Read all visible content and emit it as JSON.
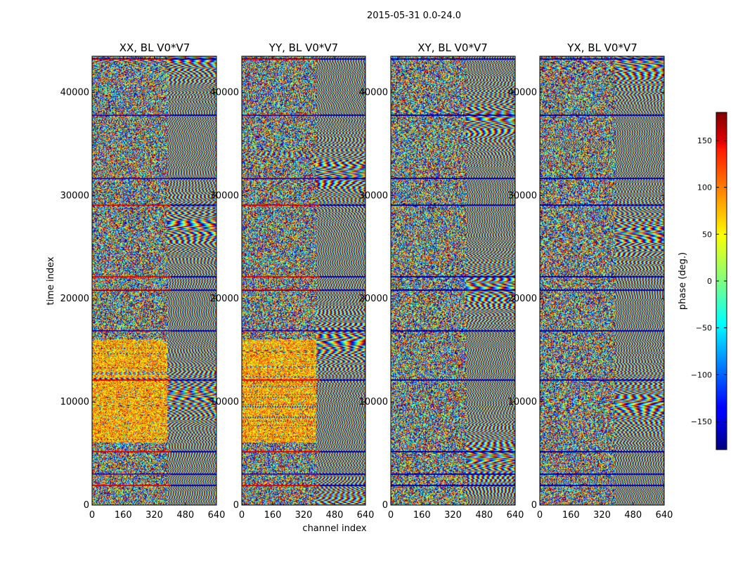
{
  "figure": {
    "suptitle": "2015-05-31 0.0-24.0"
  },
  "chart_data": [
    {
      "type": "heatmap",
      "title": "XX, BL V0*V7",
      "xlabel": "",
      "ylabel": "time index",
      "xlim": [
        0,
        640
      ],
      "ylim": [
        0,
        43500
      ],
      "xticks": [
        0,
        160,
        320,
        480,
        640
      ],
      "yticks": [
        0,
        10000,
        20000,
        30000,
        40000
      ],
      "value_range": [
        -180,
        180
      ],
      "colormap": "jet",
      "content": "noisy phase at low channels; striped fringe phase pattern above ~400"
    },
    {
      "type": "heatmap",
      "title": "YY, BL V0*V7",
      "xlabel": "channel index",
      "ylabel": "",
      "xlim": [
        0,
        640
      ],
      "ylim": [
        0,
        43500
      ],
      "xticks": [
        0,
        160,
        320,
        480,
        640
      ],
      "yticks": [
        0,
        10000,
        20000,
        30000,
        40000
      ],
      "value_range": [
        -180,
        180
      ],
      "colormap": "jet"
    },
    {
      "type": "heatmap",
      "title": "XY, BL V0*V7",
      "xlabel": "",
      "ylabel": "",
      "xlim": [
        0,
        640
      ],
      "ylim": [
        0,
        43500
      ],
      "xticks": [
        0,
        160,
        320,
        480,
        640
      ],
      "yticks": [
        0,
        10000,
        20000,
        30000,
        40000
      ],
      "value_range": [
        -180,
        180
      ],
      "colormap": "jet"
    },
    {
      "type": "heatmap",
      "title": "YX, BL V0*V7",
      "xlabel": "",
      "ylabel": "",
      "xlim": [
        0,
        640
      ],
      "ylim": [
        0,
        43500
      ],
      "xticks": [
        0,
        160,
        320,
        480,
        640
      ],
      "yticks": [
        0,
        10000,
        20000,
        30000,
        40000
      ],
      "value_range": [
        -180,
        180
      ],
      "colormap": "jet"
    }
  ],
  "colorbar": {
    "label": "phase (deg.)",
    "range": [
      -180,
      180
    ],
    "ticks": [
      150,
      100,
      50,
      0,
      -50,
      -100,
      -150
    ],
    "tick_labels": [
      "150",
      "100",
      "50",
      "0",
      "−50",
      "−100",
      "−150"
    ]
  }
}
